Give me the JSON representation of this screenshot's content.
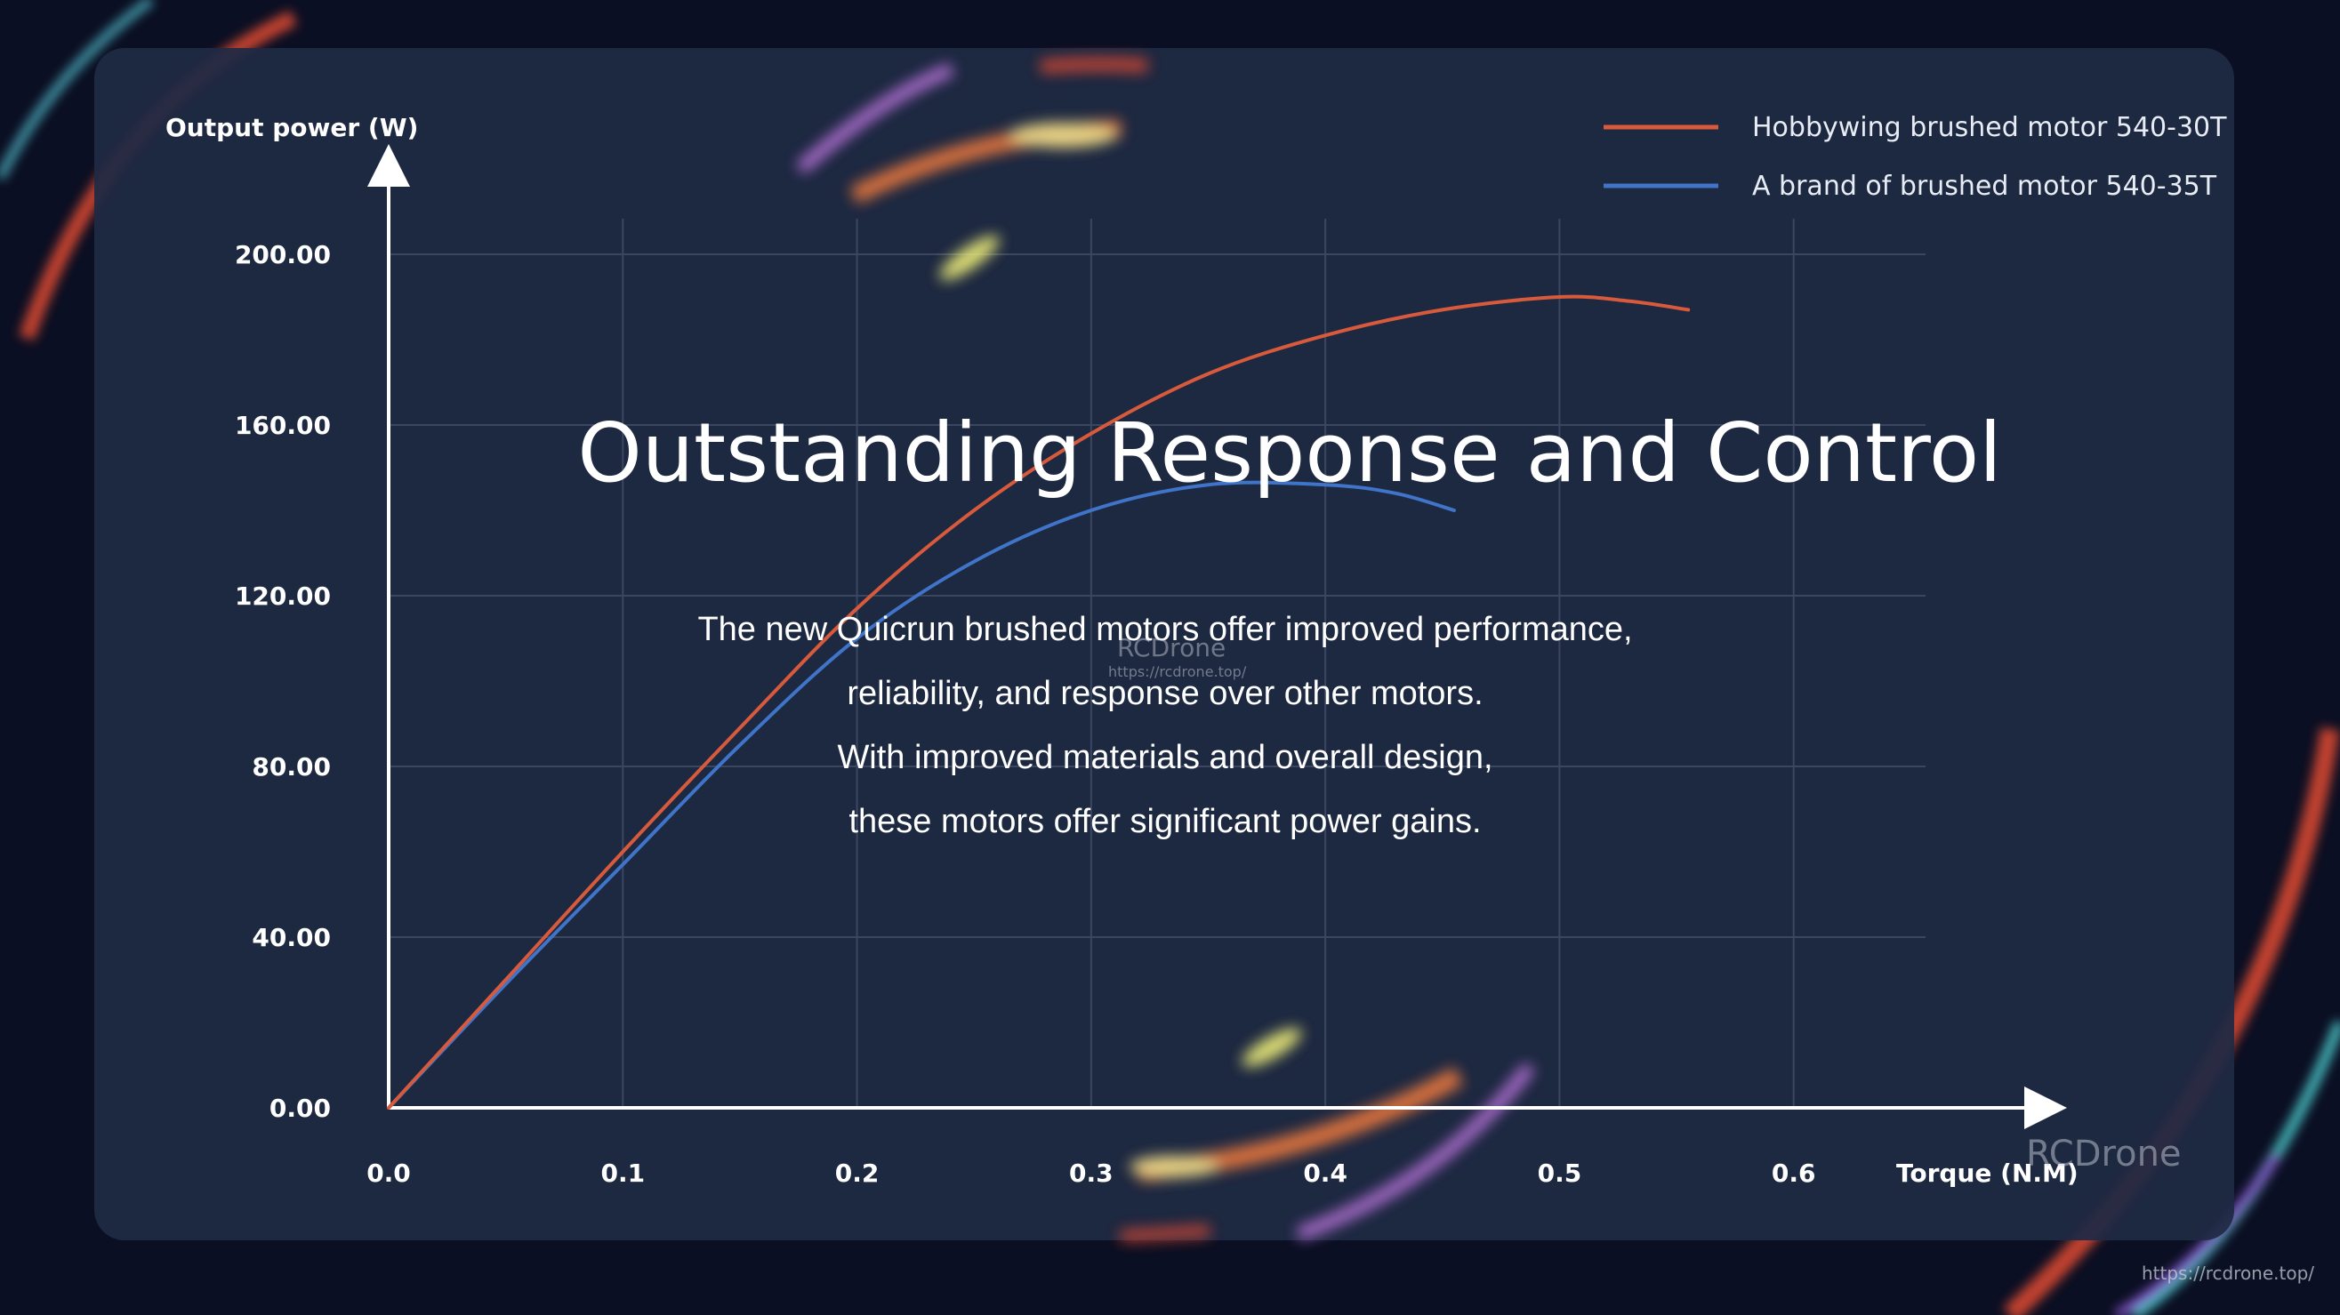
{
  "colors": {
    "background": "#0b0f23",
    "panel": "#1f2a44",
    "series_orange": "#d85a3c",
    "series_blue": "#3f74c8",
    "axis": "#ffffff",
    "grid": "#3b4760"
  },
  "headline": "Outstanding Response and Control",
  "description": [
    "The new Quicrun brushed motors offer improved performance,",
    "reliability, and response over other motors.",
    "With improved materials and overall design,",
    "these motors offer significant power gains."
  ],
  "watermark": {
    "main": "RCDrone",
    "url": "https://rcdrone.top/",
    "corner": "RCDrone",
    "corner_url": "https://rcdrone.top/"
  },
  "chart_data": {
    "type": "line",
    "xlabel": "Torque (N.M)",
    "ylabel": "Output power (W)",
    "xlim": [
      0,
      0.7
    ],
    "ylim": [
      0,
      200
    ],
    "x_ticks": [
      0.0,
      0.1,
      0.2,
      0.3,
      0.4,
      0.5,
      0.6
    ],
    "x_tick_labels": [
      "0.0",
      "0.1",
      "0.2",
      "0.3",
      "0.4",
      "0.5",
      "0.6"
    ],
    "y_ticks": [
      0,
      40,
      80,
      120,
      160,
      200
    ],
    "y_tick_labels": [
      "0.00",
      "40.00",
      "80.00",
      "120.00",
      "160.00",
      "200.00"
    ],
    "grid": true,
    "legend_position": "top-right",
    "series": [
      {
        "name": "Hobbywing brushed motor 540-30T",
        "color": "#d85a3c",
        "x": [
          0.0,
          0.05,
          0.1,
          0.15,
          0.2,
          0.25,
          0.3,
          0.35,
          0.4,
          0.45,
          0.5,
          0.53,
          0.555
        ],
        "y": [
          0,
          30,
          60,
          89,
          117,
          140,
          158,
          172,
          181,
          187,
          190,
          189,
          187
        ]
      },
      {
        "name": "A brand of brushed motor 540-35T",
        "color": "#3f74c8",
        "x": [
          0.0,
          0.05,
          0.1,
          0.15,
          0.2,
          0.25,
          0.3,
          0.35,
          0.4,
          0.43,
          0.455
        ],
        "y": [
          0,
          29,
          57,
          85,
          110,
          128,
          140,
          146,
          146,
          144,
          140
        ]
      }
    ]
  }
}
